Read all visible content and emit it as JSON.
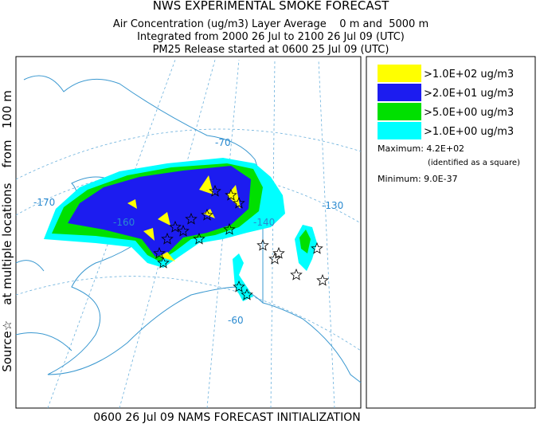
{
  "header": {
    "title": "NWS EXPERIMENTAL SMOKE FORECAST",
    "lines": [
      "Air Concentration (ug/m3) Layer Average    0 m and  5000 m",
      "Integrated from 2000 26 Jul to 2100 26 Jul 09 (UTC)",
      "PM25 Release started at 0600 25 Jul 09 (UTC)"
    ]
  },
  "side_label": "Source☆    at multiple locations    from   100 m",
  "legend": {
    "entries": [
      {
        "label": ">1.0E+02 ug/m3",
        "color": "#ffff00"
      },
      {
        "label": ">2.0E+01 ug/m3",
        "color": "#1c1cf0"
      },
      {
        "label": ">5.0E+00 ug/m3",
        "color": "#00e000"
      },
      {
        "label": ">1.0E+00 ug/m3",
        "color": "#00ffff"
      }
    ],
    "maximum": "Maximum: 4.2E+02",
    "maximum_note": "(identified as a square)",
    "minimum": "Minimum: 9.0E-37"
  },
  "map": {
    "labels": [
      "-70",
      "-170",
      "-160",
      "-140",
      "-130",
      "-60"
    ]
  },
  "footer": "0600 26 Jul 09 NAMS FORECAST INITIALIZATION"
}
